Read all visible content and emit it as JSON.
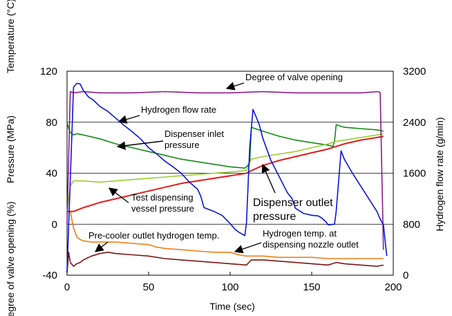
{
  "chart_data": {
    "type": "line",
    "xlabel": "Time (sec)",
    "ylabel_left": [
      "Temperature (°C)",
      "Pressure (MPa)",
      "egree of valve opening (%)"
    ],
    "ylabel_right": "Hydrogen flow rate (g/min)",
    "xlim": [
      0,
      200
    ],
    "ylim_left": [
      -40,
      120
    ],
    "ylim_right": [
      0,
      3200
    ],
    "x_ticks": [
      "0",
      "50",
      "100",
      "150",
      "200"
    ],
    "y_left_ticks": [
      "-40",
      "0",
      "40",
      "80",
      "120"
    ],
    "y_right_ticks": [
      "0",
      "800",
      "1600",
      "2400",
      "3200"
    ],
    "grid": "horizontal",
    "colors": {
      "valve": "#8b1a8b",
      "flow": "#0a14d8",
      "inlet": "#138a13",
      "outlet": "#9acd32",
      "vessel": "#e31a1a",
      "precooler": "#f07d18",
      "nozzle": "#7a1515"
    },
    "series": [
      {
        "key": "valve",
        "axis": "left",
        "name": "Degree of valve opening",
        "x": [
          0,
          2,
          4,
          10,
          20,
          40,
          60,
          80,
          100,
          120,
          140,
          160,
          180,
          191,
          192,
          194
        ],
        "y": [
          0,
          104,
          103,
          104,
          103,
          103,
          104,
          103,
          103,
          104,
          103,
          103,
          103,
          104,
          103,
          -20
        ]
      },
      {
        "key": "flow",
        "axis": "right",
        "name": "Hydrogen flow rate",
        "x": [
          0,
          2,
          4,
          6,
          8,
          10,
          13,
          16,
          20,
          25,
          30,
          35,
          40,
          45,
          50,
          55,
          60,
          65,
          70,
          75,
          80,
          82,
          84,
          90,
          95,
          100,
          103,
          105,
          109,
          110,
          112,
          114,
          116,
          118,
          120,
          125,
          130,
          135,
          138,
          140,
          145,
          150,
          154,
          156,
          159,
          160,
          164,
          165,
          168,
          170,
          175,
          180,
          185,
          190,
          192,
          194,
          196
        ],
        "y": [
          50,
          1500,
          2950,
          3010,
          3000,
          2900,
          2800,
          2750,
          2650,
          2570,
          2460,
          2350,
          2250,
          2140,
          2000,
          1900,
          1790,
          1700,
          1600,
          1460,
          1350,
          1240,
          1060,
          1000,
          940,
          810,
          720,
          680,
          620,
          820,
          2000,
          2600,
          2480,
          2350,
          2150,
          1800,
          1550,
          1300,
          1200,
          1050,
          970,
          940,
          930,
          900,
          830,
          790,
          800,
          1000,
          1950,
          1820,
          1600,
          1400,
          1200,
          1000,
          880,
          790,
          300
        ]
      },
      {
        "key": "inlet",
        "axis": "left",
        "name": "Dispenser inlet pressure",
        "x": [
          0,
          1,
          2,
          4,
          6,
          10,
          20,
          30,
          40,
          50,
          60,
          70,
          80,
          90,
          100,
          109,
          110,
          112,
          113,
          120,
          130,
          140,
          150,
          160,
          163,
          164,
          165,
          170,
          180,
          190,
          194
        ],
        "y": [
          80,
          75,
          72,
          70,
          71,
          70,
          67,
          63,
          60,
          57,
          54,
          51,
          49,
          47,
          45,
          44,
          45,
          48,
          76,
          73,
          69,
          66,
          64,
          62,
          61,
          65,
          78,
          76,
          75,
          74,
          73
        ]
      },
      {
        "key": "outlet",
        "axis": "left",
        "name": "Dispenser outlet pressure",
        "x": [
          0,
          2,
          4,
          6,
          10,
          20,
          30,
          40,
          50,
          60,
          70,
          80,
          90,
          100,
          110,
          113,
          120,
          130,
          140,
          150,
          160,
          165,
          170,
          180,
          190,
          194
        ],
        "y": [
          10,
          30,
          34,
          34,
          34,
          33,
          34,
          35,
          36,
          37,
          38,
          39,
          40,
          41,
          42,
          51,
          53,
          55,
          57,
          60,
          63,
          65,
          66,
          68,
          70,
          71
        ]
      },
      {
        "key": "vessel",
        "axis": "left",
        "name": "Test dispensing vessel pressure",
        "x": [
          0,
          2,
          4,
          10,
          20,
          30,
          40,
          50,
          60,
          70,
          80,
          90,
          100,
          110,
          113,
          120,
          130,
          140,
          150,
          160,
          165,
          170,
          180,
          190,
          194
        ],
        "y": [
          10,
          10,
          10,
          13,
          17,
          20,
          23,
          26,
          29,
          32,
          34,
          36,
          38,
          40,
          42,
          46,
          50,
          53,
          56,
          59,
          61,
          63,
          66,
          68,
          69
        ]
      },
      {
        "key": "precooler",
        "axis": "left",
        "name": "Pre-cooler outlet hydrogen temp.",
        "x": [
          0,
          2,
          4,
          6,
          8,
          10,
          15,
          20,
          30,
          40,
          50,
          55,
          60,
          70,
          80,
          90,
          100,
          105,
          110,
          120,
          130,
          140,
          150,
          160,
          165,
          170,
          180,
          190,
          194
        ],
        "y": [
          10,
          10,
          -3,
          -10,
          -12,
          -13,
          -14,
          -14,
          -14,
          -15,
          -16,
          -18,
          -19,
          -20,
          -21,
          -22,
          -22,
          -24,
          -25,
          -25,
          -26,
          -26,
          -26,
          -27,
          -27,
          -27,
          -27,
          -27,
          -27
        ]
      },
      {
        "key": "nozzle",
        "axis": "left",
        "name": "Hydrogen temp. at dispensing nozzle outlet",
        "x": [
          0,
          1,
          2,
          4,
          6,
          8,
          10,
          15,
          20,
          25,
          30,
          40,
          50,
          60,
          70,
          80,
          90,
          100,
          110,
          113,
          120,
          130,
          140,
          150,
          160,
          165,
          170,
          180,
          190,
          194
        ],
        "y": [
          -38,
          -22,
          -30,
          -33,
          -31,
          -30,
          -28,
          -25,
          -23,
          -22,
          -23,
          -24,
          -25,
          -27,
          -28,
          -29,
          -30,
          -31,
          -32,
          -28,
          -28,
          -29,
          -30,
          -31,
          -32,
          -30,
          -31,
          -32,
          -33,
          -32
        ]
      }
    ],
    "annotations": [
      "Degree of valve opening",
      "Hydrogen flow rate",
      "Dispenser inlet\npressure",
      "Test dispensing\nvessel pressure",
      "Dispenser outlet\npressure",
      "Pre-cooler outlet hydrogen temp.",
      "Hydrogen temp. at\ndispensing nozzle outlet"
    ]
  }
}
